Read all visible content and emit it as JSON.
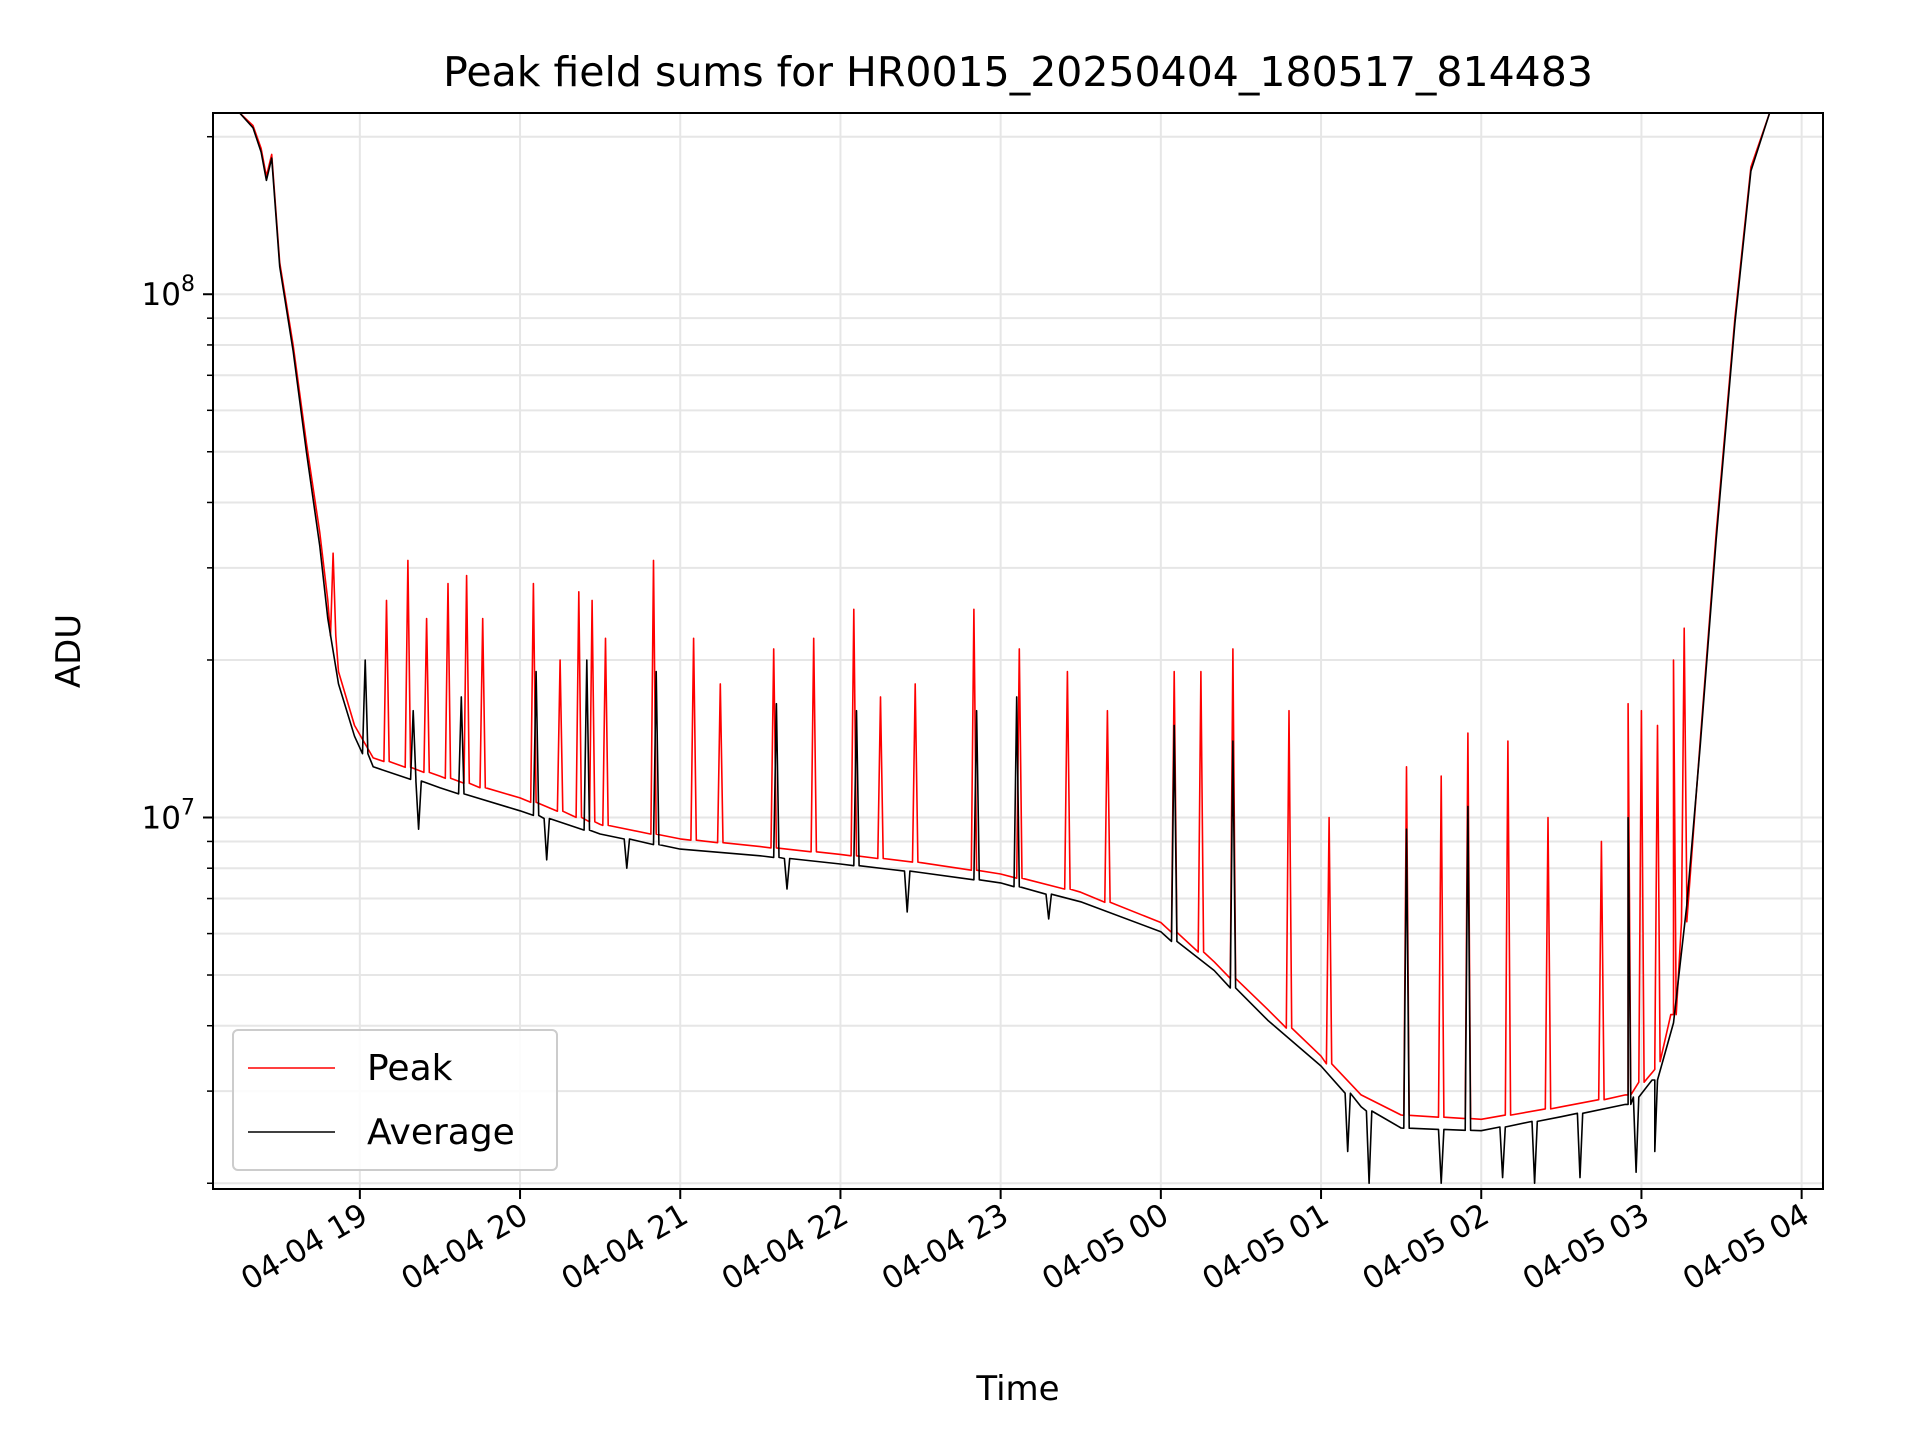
{
  "chart_data": {
    "type": "line",
    "title": "Peak field sums for HR0015_20250404_180517_814483",
    "xlabel": "Time",
    "ylabel": "ADU",
    "yscale": "log",
    "ylim": [
      1950000,
      222000000
    ],
    "xlim": [
      "2025-04-04 18:05",
      "2025-04-05 04:08"
    ],
    "x_ticks": [
      "04-04 19",
      "04-04 20",
      "04-04 21",
      "04-04 22",
      "04-04 23",
      "04-05 00",
      "04-05 01",
      "04-05 02",
      "04-05 03",
      "04-05 04"
    ],
    "x_tick_rotation": 30,
    "y_tick_labels": [
      {
        "value": 10000000,
        "base": "10",
        "exp": "7"
      },
      {
        "value": 100000000,
        "base": "10",
        "exp": "8"
      }
    ],
    "grid": true,
    "grid_minor": true,
    "legend": "lower-left",
    "series": [
      {
        "name": "Peak",
        "color": "#ff0000",
        "points": [
          [
            "2025-04-04 18:05",
            222000000
          ],
          [
            "2025-04-04 18:15",
            222000000
          ],
          [
            "2025-04-04 18:20",
            210000000
          ],
          [
            "2025-04-04 18:23",
            190000000
          ],
          [
            "2025-04-04 18:25",
            168000000
          ],
          [
            "2025-04-04 18:27",
            185000000
          ],
          [
            "2025-04-04 18:30",
            115000000
          ],
          [
            "2025-04-04 18:35",
            80000000
          ],
          [
            "2025-04-04 18:40",
            52000000
          ],
          [
            "2025-04-04 18:45",
            35000000
          ],
          [
            "2025-04-04 18:48",
            26000000
          ],
          [
            "2025-04-04 18:52",
            19000000
          ],
          [
            "2025-04-04 18:58",
            15000000
          ],
          [
            "2025-04-04 19:05",
            13000000
          ],
          [
            "2025-04-04 19:30",
            12000000
          ],
          [
            "2025-04-04 20:00",
            10900000
          ],
          [
            "2025-04-04 20:30",
            9700000
          ],
          [
            "2025-04-04 21:00",
            9100000
          ],
          [
            "2025-04-04 21:30",
            8800000
          ],
          [
            "2025-04-04 22:00",
            8500000
          ],
          [
            "2025-04-04 22:30",
            8200000
          ],
          [
            "2025-04-04 23:00",
            7800000
          ],
          [
            "2025-04-04 23:30",
            7200000
          ],
          [
            "2025-04-05 00:00",
            6300000
          ],
          [
            "2025-04-05 00:20",
            5300000
          ],
          [
            "2025-04-05 00:40",
            4300000
          ],
          [
            "2025-04-05 01:00",
            3500000
          ],
          [
            "2025-04-05 01:15",
            2950000
          ],
          [
            "2025-04-05 01:30",
            2700000
          ],
          [
            "2025-04-05 02:00",
            2650000
          ],
          [
            "2025-04-05 02:30",
            2800000
          ],
          [
            "2025-04-05 02:55",
            2950000
          ],
          [
            "2025-04-05 03:05",
            3300000
          ],
          [
            "2025-04-05 03:12",
            4200000
          ],
          [
            "2025-04-05 03:17",
            7000000
          ],
          [
            "2025-04-05 03:22",
            14000000
          ],
          [
            "2025-04-05 03:28",
            35000000
          ],
          [
            "2025-04-05 03:35",
            90000000
          ],
          [
            "2025-04-05 03:41",
            175000000
          ],
          [
            "2025-04-05 03:48",
            222000000
          ],
          [
            "2025-04-05 04:08",
            222000000
          ]
        ],
        "spikes": [
          [
            "2025-04-04 18:50",
            32000000
          ],
          [
            "2025-04-04 19:10",
            26000000
          ],
          [
            "2025-04-04 19:18",
            31000000
          ],
          [
            "2025-04-04 19:25",
            24000000
          ],
          [
            "2025-04-04 19:33",
            28000000
          ],
          [
            "2025-04-04 19:40",
            29000000
          ],
          [
            "2025-04-04 19:46",
            24000000
          ],
          [
            "2025-04-04 20:05",
            28000000
          ],
          [
            "2025-04-04 20:15",
            20000000
          ],
          [
            "2025-04-04 20:22",
            27000000
          ],
          [
            "2025-04-04 20:27",
            26000000
          ],
          [
            "2025-04-04 20:32",
            22000000
          ],
          [
            "2025-04-04 20:50",
            31000000
          ],
          [
            "2025-04-04 21:05",
            22000000
          ],
          [
            "2025-04-04 21:15",
            18000000
          ],
          [
            "2025-04-04 21:35",
            21000000
          ],
          [
            "2025-04-04 21:50",
            22000000
          ],
          [
            "2025-04-04 22:05",
            25000000
          ],
          [
            "2025-04-04 22:15",
            17000000
          ],
          [
            "2025-04-04 22:28",
            18000000
          ],
          [
            "2025-04-04 22:50",
            25000000
          ],
          [
            "2025-04-04 23:07",
            21000000
          ],
          [
            "2025-04-04 23:25",
            19000000
          ],
          [
            "2025-04-04 23:40",
            16000000
          ],
          [
            "2025-04-05 00:05",
            19000000
          ],
          [
            "2025-04-05 00:15",
            19000000
          ],
          [
            "2025-04-05 00:27",
            21000000
          ],
          [
            "2025-04-05 00:48",
            16000000
          ],
          [
            "2025-04-05 01:03",
            10000000
          ],
          [
            "2025-04-05 01:32",
            12500000
          ],
          [
            "2025-04-05 01:45",
            12000000
          ],
          [
            "2025-04-05 01:55",
            14500000
          ],
          [
            "2025-04-05 02:10",
            14000000
          ],
          [
            "2025-04-05 02:25",
            10000000
          ],
          [
            "2025-04-05 02:45",
            9000000
          ],
          [
            "2025-04-05 02:55",
            16500000
          ],
          [
            "2025-04-05 03:00",
            16000000
          ],
          [
            "2025-04-05 03:06",
            15000000
          ],
          [
            "2025-04-05 03:12",
            20000000
          ],
          [
            "2025-04-05 03:16",
            23000000
          ]
        ]
      },
      {
        "name": "Average",
        "color": "#000000",
        "points": [
          [
            "2025-04-04 18:05",
            222000000
          ],
          [
            "2025-04-04 18:15",
            222000000
          ],
          [
            "2025-04-04 18:20",
            208000000
          ],
          [
            "2025-04-04 18:23",
            187000000
          ],
          [
            "2025-04-04 18:25",
            165000000
          ],
          [
            "2025-04-04 18:27",
            182000000
          ],
          [
            "2025-04-04 18:30",
            113000000
          ],
          [
            "2025-04-04 18:35",
            78000000
          ],
          [
            "2025-04-04 18:40",
            50000000
          ],
          [
            "2025-04-04 18:45",
            33000000
          ],
          [
            "2025-04-04 18:48",
            24000000
          ],
          [
            "2025-04-04 18:52",
            18000000
          ],
          [
            "2025-04-04 18:58",
            14300000
          ],
          [
            "2025-04-04 19:05",
            12500000
          ],
          [
            "2025-04-04 19:30",
            11400000
          ],
          [
            "2025-04-04 20:00",
            10300000
          ],
          [
            "2025-04-04 20:30",
            9300000
          ],
          [
            "2025-04-04 21:00",
            8700000
          ],
          [
            "2025-04-04 21:30",
            8450000
          ],
          [
            "2025-04-04 22:00",
            8150000
          ],
          [
            "2025-04-04 22:30",
            7850000
          ],
          [
            "2025-04-04 23:00",
            7500000
          ],
          [
            "2025-04-04 23:30",
            6900000
          ],
          [
            "2025-04-05 00:00",
            6050000
          ],
          [
            "2025-04-05 00:20",
            5100000
          ],
          [
            "2025-04-05 00:40",
            4100000
          ],
          [
            "2025-04-05 01:00",
            3350000
          ],
          [
            "2025-04-05 01:15",
            2800000
          ],
          [
            "2025-04-05 01:30",
            2550000
          ],
          [
            "2025-04-05 02:00",
            2520000
          ],
          [
            "2025-04-05 02:30",
            2680000
          ],
          [
            "2025-04-05 02:55",
            2830000
          ],
          [
            "2025-04-05 03:05",
            3150000
          ],
          [
            "2025-04-05 03:12",
            4050000
          ],
          [
            "2025-04-05 03:17",
            6800000
          ],
          [
            "2025-04-05 03:22",
            13700000
          ],
          [
            "2025-04-05 03:28",
            34000000
          ],
          [
            "2025-04-05 03:35",
            88000000
          ],
          [
            "2025-04-05 03:41",
            172000000
          ],
          [
            "2025-04-05 03:48",
            222000000
          ],
          [
            "2025-04-05 04:08",
            222000000
          ]
        ],
        "spikes": [
          [
            "2025-04-04 19:02",
            20000000
          ],
          [
            "2025-04-04 19:20",
            16000000
          ],
          [
            "2025-04-04 19:38",
            17000000
          ],
          [
            "2025-04-04 20:06",
            19000000
          ],
          [
            "2025-04-04 20:25",
            20000000
          ],
          [
            "2025-04-04 20:51",
            19000000
          ],
          [
            "2025-04-04 21:36",
            16500000
          ],
          [
            "2025-04-04 22:06",
            16000000
          ],
          [
            "2025-04-04 22:51",
            16000000
          ],
          [
            "2025-04-04 23:06",
            17000000
          ],
          [
            "2025-04-05 00:05",
            15000000
          ],
          [
            "2025-04-05 00:27",
            14000000
          ],
          [
            "2025-04-05 01:32",
            9500000
          ],
          [
            "2025-04-05 01:55",
            10500000
          ],
          [
            "2025-04-05 02:55",
            10000000
          ]
        ],
        "dips": [
          [
            "2025-04-04 19:22",
            9500000
          ],
          [
            "2025-04-04 20:10",
            8300000
          ],
          [
            "2025-04-04 20:40",
            8000000
          ],
          [
            "2025-04-04 21:40",
            7300000
          ],
          [
            "2025-04-04 22:25",
            6600000
          ],
          [
            "2025-04-04 23:18",
            6400000
          ],
          [
            "2025-04-05 01:10",
            2300000
          ],
          [
            "2025-04-05 01:18",
            2000000
          ],
          [
            "2025-04-05 01:45",
            2000000
          ],
          [
            "2025-04-05 02:08",
            2050000
          ],
          [
            "2025-04-05 02:20",
            2000000
          ],
          [
            "2025-04-05 02:37",
            2050000
          ],
          [
            "2025-04-05 02:58",
            2100000
          ],
          [
            "2025-04-05 03:05",
            2300000
          ]
        ]
      }
    ]
  }
}
